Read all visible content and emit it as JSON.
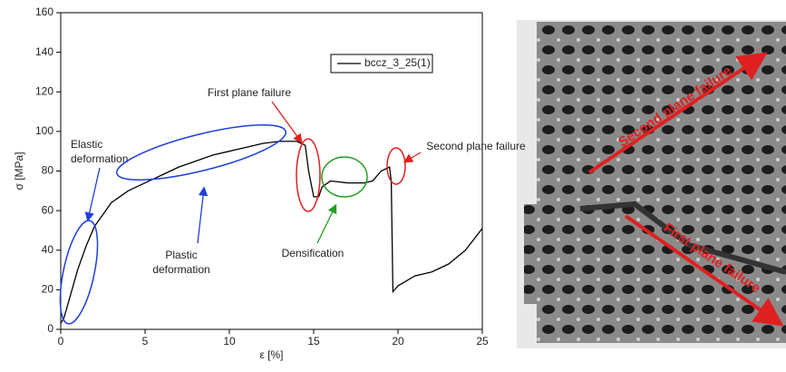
{
  "chart_data": {
    "type": "line",
    "xlabel": "ε [%]",
    "ylabel": "σ [MPa]",
    "x": [
      0,
      0.2,
      0.5,
      1,
      1.5,
      2,
      2.5,
      3,
      4,
      5,
      6,
      7,
      8,
      9,
      10,
      11,
      12,
      13,
      14,
      14.5,
      14.7,
      15,
      15.3,
      15.5,
      16,
      17,
      18,
      18.5,
      19,
      19.5,
      19.6,
      19.7,
      20,
      21,
      22,
      23,
      24,
      25
    ],
    "series": [
      {
        "name": "bccz_3_25(1)",
        "color": "#000000",
        "values": [
          3,
          6,
          15,
          30,
          42,
          52,
          58,
          64,
          70,
          74,
          78,
          82,
          85,
          88,
          90,
          92,
          94,
          95,
          95,
          93,
          80,
          67,
          67,
          72,
          75,
          74,
          74,
          75,
          80,
          82,
          75,
          19,
          22,
          27,
          29,
          33,
          40,
          51
        ]
      }
    ],
    "xlim": [
      0,
      25
    ],
    "ylim": [
      0,
      160
    ],
    "xticks": [
      0,
      5,
      10,
      15,
      20,
      25
    ],
    "yticks": [
      0,
      20,
      40,
      60,
      80,
      100,
      120,
      140,
      160
    ],
    "legend": "upper right",
    "annotations": [
      {
        "lines": [
          "Elastic",
          "deformation"
        ],
        "color": "#1f3fdc"
      },
      {
        "lines": [
          "Plastic",
          "deformation"
        ],
        "color": "#1f3fdc"
      },
      {
        "lines": [
          "First plane failure"
        ],
        "color": "#e02020"
      },
      {
        "lines": [
          "Densification"
        ],
        "color": "#22a022"
      },
      {
        "lines": [
          "Second plane failure"
        ],
        "color": "#e02020"
      }
    ]
  },
  "image": {
    "labels": [
      "Second plane failure",
      "First plane failure"
    ]
  }
}
